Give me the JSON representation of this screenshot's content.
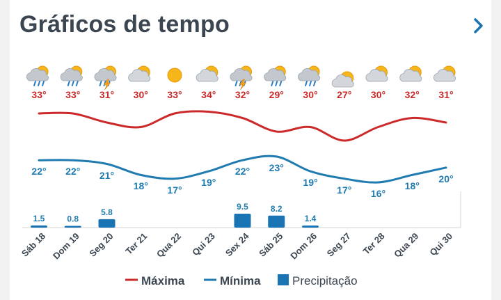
{
  "header": {
    "title": "Gráficos de tempo"
  },
  "colors": {
    "max": "#cc2a2a",
    "min": "#1f7bb0",
    "precip": "#1a73b3",
    "title": "#3b4651"
  },
  "chart_data": {
    "type": "line",
    "categories": [
      "Sáb 18",
      "Dom 19",
      "Seg 20",
      "Ter 21",
      "Qua 22",
      "Qui 23",
      "Sex 24",
      "Sáb 25",
      "Dom 26",
      "Seg 27",
      "Ter 28",
      "Qua 29",
      "Qui 30"
    ],
    "icons": [
      "rain-sun-icon",
      "rain-sun-icon",
      "storm-sun-icon",
      "partly-cloudy-icon",
      "sun-icon",
      "partly-cloudy-icon",
      "storm-sun-icon",
      "rain-sun-icon",
      "rain-sun-icon",
      "partly-cloudy-icon",
      "partly-cloudy-icon",
      "partly-cloudy-icon",
      "partly-cloudy-icon"
    ],
    "series": [
      {
        "name": "Máxima",
        "values": [
          33,
          33,
          31,
          30,
          33,
          34,
          32,
          29,
          30,
          27,
          30,
          32,
          31
        ],
        "labels": [
          "33°",
          "33°",
          "31°",
          "30°",
          "33°",
          "34°",
          "32°",
          "29°",
          "30°",
          "27°",
          "30°",
          "32°",
          "31°"
        ]
      },
      {
        "name": "Mínima",
        "values": [
          22,
          22,
          21,
          18,
          17,
          19,
          22,
          23,
          19,
          17,
          16,
          18,
          20
        ],
        "labels": [
          "22°",
          "22°",
          "21°",
          "18°",
          "17°",
          "19°",
          "22°",
          "23°",
          "19°",
          "17°",
          "16°",
          "18°",
          "20°"
        ]
      },
      {
        "name": "Precipitação",
        "values": [
          1.5,
          0.8,
          5.8,
          0,
          0,
          0,
          9.5,
          8.2,
          1.4,
          0,
          0,
          0,
          0
        ],
        "labels": [
          "1.5",
          "0.8",
          "5.8",
          "",
          "",
          "",
          "9.5",
          "8.2",
          "1.4",
          "",
          "",
          "",
          ""
        ]
      }
    ],
    "legend_position": "bottom"
  }
}
